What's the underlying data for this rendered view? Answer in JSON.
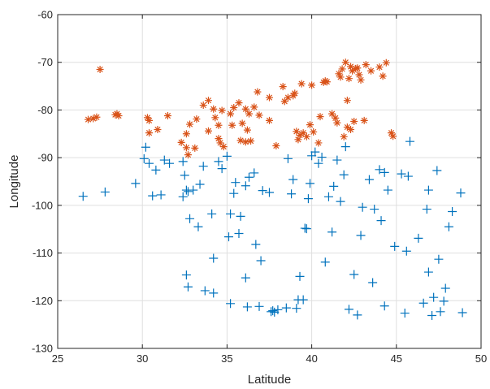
{
  "chart_data": {
    "type": "scatter",
    "title": "",
    "xlabel": "Latitude",
    "ylabel": "Longitude",
    "xlim": [
      25,
      50
    ],
    "ylim": [
      -130,
      -60
    ],
    "xticks": [
      25,
      30,
      35,
      40,
      45,
      50
    ],
    "yticks": [
      -130,
      -120,
      -110,
      -100,
      -90,
      -80,
      -70,
      -60
    ],
    "xtick_labels": [
      "25",
      "30",
      "35",
      "40",
      "45",
      "50"
    ],
    "ytick_labels": [
      "-130",
      "-120",
      "-110",
      "-100",
      "-90",
      "-80",
      "-70",
      "-60"
    ],
    "grid": true,
    "legend": "none",
    "series": [
      {
        "marker": "star",
        "color": "#D95319",
        "points": [
          [
            27.5,
            -71.5
          ],
          [
            26.8,
            -82
          ],
          [
            27.1,
            -81.8
          ],
          [
            27.3,
            -81.5
          ],
          [
            28.4,
            -81
          ],
          [
            28.5,
            -80.8
          ],
          [
            28.6,
            -81.2
          ],
          [
            30.3,
            -81.6
          ],
          [
            30.4,
            -82.2
          ],
          [
            30.4,
            -84.8
          ],
          [
            30.9,
            -84.1
          ],
          [
            31.5,
            -81.2
          ],
          [
            32.3,
            -86.8
          ],
          [
            32.6,
            -85
          ],
          [
            32.6,
            -87.9
          ],
          [
            32.8,
            -83
          ],
          [
            32.7,
            -89.4
          ],
          [
            33.1,
            -88
          ],
          [
            33.2,
            -81.9
          ],
          [
            33.6,
            -79
          ],
          [
            33.9,
            -78
          ],
          [
            33.9,
            -84.4
          ],
          [
            34.2,
            -79.8
          ],
          [
            34.3,
            -81.6
          ],
          [
            34.5,
            -86
          ],
          [
            34.5,
            -83.2
          ],
          [
            34.6,
            -86.9
          ],
          [
            34.8,
            -87.7
          ],
          [
            34.7,
            -80.1
          ],
          [
            35.2,
            -80.8
          ],
          [
            35.3,
            -83.2
          ],
          [
            35.4,
            -79.5
          ],
          [
            35.7,
            -78.5
          ],
          [
            35.8,
            -86.4
          ],
          [
            35.9,
            -82.8
          ],
          [
            36.1,
            -79.8
          ],
          [
            36.1,
            -86.7
          ],
          [
            36.2,
            -84.2
          ],
          [
            36.3,
            -80.8
          ],
          [
            36.4,
            -86.5
          ],
          [
            36.6,
            -79.4
          ],
          [
            36.8,
            -76.2
          ],
          [
            36.9,
            -81.1
          ],
          [
            37.5,
            -82.2
          ],
          [
            37.5,
            -77.4
          ],
          [
            37.9,
            -87.5
          ],
          [
            38.3,
            -75.1
          ],
          [
            38.4,
            -78.2
          ],
          [
            38.6,
            -77.4
          ],
          [
            38.9,
            -77.0
          ],
          [
            39,
            -76.5
          ],
          [
            39.1,
            -84.5
          ],
          [
            39.2,
            -86.2
          ],
          [
            39.3,
            -85.3
          ],
          [
            39.4,
            -74.5
          ],
          [
            39.5,
            -84.8
          ],
          [
            39.7,
            -85.6
          ],
          [
            39.9,
            -83.1
          ],
          [
            40,
            -74.8
          ],
          [
            40.1,
            -84.6
          ],
          [
            40.4,
            -86.9
          ],
          [
            40.5,
            -81.4
          ],
          [
            40.7,
            -74.2
          ],
          [
            40.8,
            -73.9
          ],
          [
            40.9,
            -74.1
          ],
          [
            41.2,
            -80.8
          ],
          [
            41.4,
            -81.7
          ],
          [
            41.5,
            -82.7
          ],
          [
            41.6,
            -72.4
          ],
          [
            41.7,
            -73.1
          ],
          [
            41.8,
            -71.4
          ],
          [
            41.9,
            -85.6
          ],
          [
            42,
            -70
          ],
          [
            42.1,
            -83.6
          ],
          [
            42.2,
            -73.4
          ],
          [
            42.3,
            -70.9
          ],
          [
            42.4,
            -71.8
          ],
          [
            42.5,
            -82.4
          ],
          [
            42.6,
            -71.3
          ],
          [
            42.7,
            -71.2
          ],
          [
            42.8,
            -72.6
          ],
          [
            42.9,
            -73.7
          ],
          [
            43.1,
            -82.2
          ],
          [
            43.2,
            -70.5
          ],
          [
            43.5,
            -71.8
          ],
          [
            44,
            -71
          ],
          [
            44.2,
            -72.9
          ],
          [
            44.4,
            -70.1
          ],
          [
            44.7,
            -84.8
          ],
          [
            44.8,
            -85.5
          ],
          [
            42.1,
            -78
          ],
          [
            42.3,
            -84.1
          ]
        ]
      },
      {
        "marker": "plus",
        "color": "#0072BD",
        "points": [
          [
            26.5,
            -98.1
          ],
          [
            27.8,
            -97.2
          ],
          [
            29.6,
            -95.4
          ],
          [
            30.1,
            -90.2
          ],
          [
            30.2,
            -87.8
          ],
          [
            30.4,
            -91.2
          ],
          [
            30.6,
            -98
          ],
          [
            30.8,
            -92.6
          ],
          [
            31.1,
            -97.8
          ],
          [
            31.3,
            -90.5
          ],
          [
            31.6,
            -91.2
          ],
          [
            32.4,
            -90.8
          ],
          [
            32.4,
            -98.2
          ],
          [
            32.5,
            -93.7
          ],
          [
            32.6,
            -96.8
          ],
          [
            32.6,
            -114.6
          ],
          [
            32.7,
            -97.1
          ],
          [
            32.7,
            -117.1
          ],
          [
            32.8,
            -102.8
          ],
          [
            33,
            -96.8
          ],
          [
            33.3,
            -104.5
          ],
          [
            33.4,
            -95.6
          ],
          [
            33.6,
            -91.8
          ],
          [
            33.7,
            -117.9
          ],
          [
            34.1,
            -101.8
          ],
          [
            34.2,
            -118.4
          ],
          [
            34.2,
            -111.1
          ],
          [
            34.5,
            -90.8
          ],
          [
            34.7,
            -92.3
          ],
          [
            35,
            -89.7
          ],
          [
            35.2,
            -101.8
          ],
          [
            35.1,
            -106.6
          ],
          [
            35.2,
            -120.6
          ],
          [
            35.4,
            -97.5
          ],
          [
            35.5,
            -95.2
          ],
          [
            35.7,
            -105.9
          ],
          [
            35.8,
            -102.3
          ],
          [
            36.1,
            -95.9
          ],
          [
            36.1,
            -115.2
          ],
          [
            36.2,
            -121.3
          ],
          [
            36.3,
            -94.1
          ],
          [
            36.6,
            -93.2
          ],
          [
            36.7,
            -108.2
          ],
          [
            36.9,
            -121.2
          ],
          [
            37,
            -111.6
          ],
          [
            37.1,
            -96.9
          ],
          [
            37.6,
            -122.3
          ],
          [
            37.5,
            -97.3
          ],
          [
            37.7,
            -122.1
          ],
          [
            37.8,
            -122.4
          ],
          [
            38,
            -121.9
          ],
          [
            38.5,
            -121.5
          ],
          [
            38.6,
            -90.2
          ],
          [
            38.8,
            -97.6
          ],
          [
            38.9,
            -94.6
          ],
          [
            39.1,
            -121.6
          ],
          [
            39.2,
            -119.8
          ],
          [
            39.3,
            -114.9
          ],
          [
            39.5,
            -119.8
          ],
          [
            39.6,
            -104.8
          ],
          [
            39.7,
            -104.9
          ],
          [
            39.8,
            -98.6
          ],
          [
            39.9,
            -95.4
          ],
          [
            40,
            -89.6
          ],
          [
            40.2,
            -88.8
          ],
          [
            40.4,
            -91.2
          ],
          [
            40.6,
            -89.9
          ],
          [
            40.8,
            -111.9
          ],
          [
            41,
            -98.2
          ],
          [
            41.3,
            -96
          ],
          [
            41.2,
            -105.6
          ],
          [
            41.5,
            -90.5
          ],
          [
            41.7,
            -99.2
          ],
          [
            41.9,
            -93.6
          ],
          [
            42,
            -87.7
          ],
          [
            42.2,
            -121.8
          ],
          [
            42.5,
            -114.5
          ],
          [
            42.7,
            -123
          ],
          [
            42.9,
            -106.3
          ],
          [
            43,
            -100.4
          ],
          [
            43.4,
            -94.6
          ],
          [
            43.6,
            -116.2
          ],
          [
            43.7,
            -100.8
          ],
          [
            44,
            -92.5
          ],
          [
            44.1,
            -103.2
          ],
          [
            44.3,
            -93.1
          ],
          [
            44.3,
            -121.1
          ],
          [
            44.5,
            -96.8
          ],
          [
            44.9,
            -108.6
          ],
          [
            45.3,
            -93.4
          ],
          [
            45.5,
            -122.6
          ],
          [
            45.6,
            -109.6
          ],
          [
            45.7,
            -93.9
          ],
          [
            46.3,
            -106.9
          ],
          [
            46.6,
            -120.5
          ],
          [
            46.8,
            -100.8
          ],
          [
            46.9,
            -96.8
          ],
          [
            47.1,
            -123.1
          ],
          [
            47.2,
            -119.3
          ],
          [
            47.4,
            -92.7
          ],
          [
            47.5,
            -111.3
          ],
          [
            47.6,
            -122.3
          ],
          [
            47.8,
            -120.1
          ],
          [
            47.9,
            -117.4
          ],
          [
            48.1,
            -104.5
          ],
          [
            48.3,
            -101.3
          ],
          [
            48.8,
            -97.4
          ],
          [
            48.9,
            -122.5
          ],
          [
            46.9,
            -114
          ],
          [
            45.8,
            -86.6
          ]
        ]
      }
    ]
  }
}
